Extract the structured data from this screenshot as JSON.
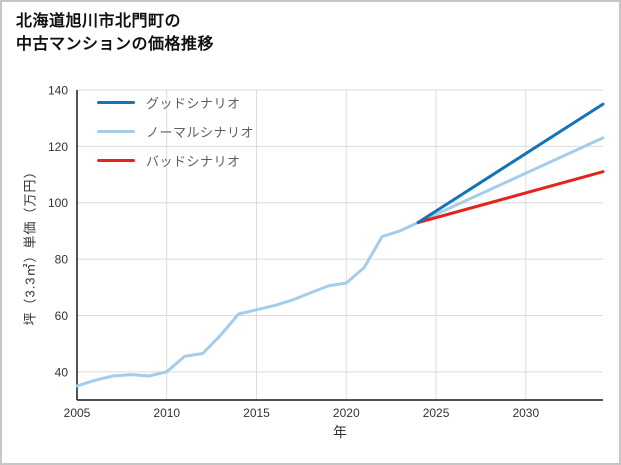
{
  "page": {
    "title_line1": "北海道旭川市北門町の",
    "title_line2": "中古マンションの価格推移"
  },
  "chart_data": {
    "type": "line",
    "title": "北海道旭川市北門町の中古マンションの価格推移",
    "xlabel": "年",
    "ylabel": "坪（3.3㎡）単価（万円）",
    "xlim": [
      2005,
      2034.3
    ],
    "ylim": [
      30,
      140
    ],
    "xticks": [
      2005,
      2010,
      2015,
      2020,
      2025,
      2030
    ],
    "yticks": [
      40,
      60,
      80,
      100,
      120,
      140
    ],
    "grid": true,
    "grid_color": "#dcdcdc",
    "axis_color": "#1a1a1a",
    "tick_color": "#333333",
    "legend_position": "top-left",
    "draw_order": [
      1,
      2,
      0
    ],
    "series": [
      {
        "name": "グッドシナリオ",
        "color": "#1474b8",
        "width": 3,
        "x": [
          2024,
          2034.3
        ],
        "y": [
          93,
          135
        ]
      },
      {
        "name": "ノーマルシナリオ",
        "color": "#a4cdea",
        "width": 3,
        "x": [
          2005,
          2006,
          2007,
          2008,
          2009,
          2010,
          2011,
          2012,
          2013,
          2014,
          2015,
          2016,
          2017,
          2018,
          2019,
          2020,
          2021,
          2022,
          2023,
          2024,
          2034.3
        ],
        "y": [
          35,
          37,
          38.5,
          39,
          38.5,
          40,
          45.5,
          46.5,
          53,
          60.5,
          62,
          63.5,
          65.5,
          68,
          70.5,
          71.5,
          77,
          88,
          90,
          93,
          123
        ]
      },
      {
        "name": "バッドシナリオ",
        "color": "#e5231b",
        "width": 3,
        "x": [
          2024,
          2034.3
        ],
        "y": [
          93,
          111
        ]
      }
    ]
  }
}
